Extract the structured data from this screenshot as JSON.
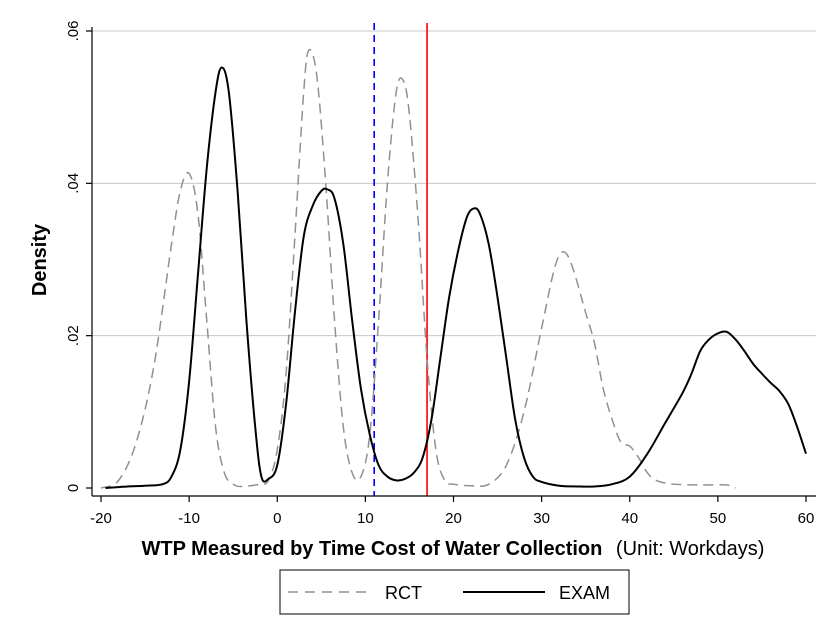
{
  "chart_data": {
    "type": "line",
    "xlabel_bold": "WTP Measured by Time Cost of Water Collection",
    "xlabel_unit": "(Unit: Workdays)",
    "ylabel": "Density",
    "xlim": [
      -20,
      60
    ],
    "ylim": [
      0,
      0.06
    ],
    "xticks": [
      -20,
      -10,
      0,
      10,
      20,
      30,
      40,
      50,
      60
    ],
    "xtick_labels": [
      "-20",
      "-10",
      "0",
      "10",
      "20",
      "30",
      "40",
      "50",
      "60"
    ],
    "yticks": [
      0,
      0.02,
      0.04,
      0.06
    ],
    "ytick_labels": [
      "0",
      ".02",
      ".04",
      ".06"
    ],
    "grid": "horizontal",
    "legend_position": "bottom",
    "series": [
      {
        "name": "RCT",
        "color": "#909090",
        "style": "dashed",
        "points": [
          [
            -20,
            0
          ],
          [
            -18,
            0.001
          ],
          [
            -16,
            0.006
          ],
          [
            -14,
            0.016
          ],
          [
            -12,
            0.032
          ],
          [
            -11,
            0.039
          ],
          [
            -10,
            0.0413
          ],
          [
            -9,
            0.036
          ],
          [
            -8,
            0.022
          ],
          [
            -7,
            0.008
          ],
          [
            -6,
            0.002
          ],
          [
            -5,
            0.0005
          ],
          [
            -4,
            0.0002
          ],
          [
            -2,
            0.0005
          ],
          [
            -1,
            0.001
          ],
          [
            0,
            0.005
          ],
          [
            1,
            0.015
          ],
          [
            2,
            0.033
          ],
          [
            3,
            0.052
          ],
          [
            3.6,
            0.0575
          ],
          [
            4.5,
            0.054
          ],
          [
            5.5,
            0.04
          ],
          [
            6.5,
            0.022
          ],
          [
            7.5,
            0.008
          ],
          [
            8.5,
            0.002
          ],
          [
            9.5,
            0.0015
          ],
          [
            10.5,
            0.007
          ],
          [
            11.5,
            0.022
          ],
          [
            12.5,
            0.04
          ],
          [
            13.5,
            0.052
          ],
          [
            14.3,
            0.0535
          ],
          [
            15,
            0.049
          ],
          [
            16,
            0.035
          ],
          [
            17,
            0.017
          ],
          [
            18,
            0.005
          ],
          [
            19,
            0.001
          ],
          [
            20,
            0.0005
          ],
          [
            22,
            0.0003
          ],
          [
            24,
            0.0005
          ],
          [
            26,
            0.003
          ],
          [
            28,
            0.01
          ],
          [
            30,
            0.021
          ],
          [
            31.5,
            0.029
          ],
          [
            32.5,
            0.031
          ],
          [
            33.5,
            0.029
          ],
          [
            35,
            0.023
          ],
          [
            36,
            0.019
          ],
          [
            37,
            0.013
          ],
          [
            38,
            0.009
          ],
          [
            39,
            0.006
          ],
          [
            40,
            0.0055
          ],
          [
            41,
            0.004
          ],
          [
            42,
            0.002
          ],
          [
            43,
            0.001
          ],
          [
            45,
            0.0005
          ],
          [
            48,
            0.0004
          ],
          [
            51,
            0.0004
          ],
          [
            52,
            0
          ]
        ]
      },
      {
        "name": "EXAM",
        "color": "#000000",
        "style": "solid",
        "points": [
          [
            -19.5,
            0
          ],
          [
            -17,
            0.0002
          ],
          [
            -15,
            0.0003
          ],
          [
            -13,
            0.0005
          ],
          [
            -12,
            0.0015
          ],
          [
            -11,
            0.005
          ],
          [
            -10,
            0.014
          ],
          [
            -9,
            0.028
          ],
          [
            -8,
            0.042
          ],
          [
            -7,
            0.052
          ],
          [
            -6.3,
            0.0552
          ],
          [
            -5.5,
            0.052
          ],
          [
            -4.5,
            0.039
          ],
          [
            -3.5,
            0.022
          ],
          [
            -2.5,
            0.008
          ],
          [
            -1.8,
            0.0015
          ],
          [
            -1,
            0.0012
          ],
          [
            0,
            0.003
          ],
          [
            1,
            0.011
          ],
          [
            2,
            0.023
          ],
          [
            3,
            0.033
          ],
          [
            4,
            0.037
          ],
          [
            5,
            0.039
          ],
          [
            5.7,
            0.0392
          ],
          [
            6.5,
            0.038
          ],
          [
            7.5,
            0.032
          ],
          [
            8.5,
            0.022
          ],
          [
            9.5,
            0.013
          ],
          [
            10.5,
            0.007
          ],
          [
            11.5,
            0.003
          ],
          [
            12.5,
            0.0015
          ],
          [
            13.5,
            0.001
          ],
          [
            14.5,
            0.0012
          ],
          [
            15.5,
            0.002
          ],
          [
            16.5,
            0.004
          ],
          [
            17.5,
            0.009
          ],
          [
            18.5,
            0.017
          ],
          [
            19.5,
            0.025
          ],
          [
            20.5,
            0.031
          ],
          [
            21.5,
            0.0355
          ],
          [
            22.3,
            0.0367
          ],
          [
            23,
            0.036
          ],
          [
            24,
            0.032
          ],
          [
            25,
            0.025
          ],
          [
            26,
            0.017
          ],
          [
            27,
            0.009
          ],
          [
            28,
            0.004
          ],
          [
            29,
            0.0015
          ],
          [
            30,
            0.0008
          ],
          [
            32,
            0.0003
          ],
          [
            34,
            0.0002
          ],
          [
            36,
            0.0002
          ],
          [
            38,
            0.0005
          ],
          [
            40,
            0.0015
          ],
          [
            42,
            0.0045
          ],
          [
            44,
            0.0085
          ],
          [
            46,
            0.0125
          ],
          [
            47,
            0.015
          ],
          [
            48,
            0.018
          ],
          [
            49,
            0.0195
          ],
          [
            50,
            0.0203
          ],
          [
            51,
            0.0205
          ],
          [
            52,
            0.0195
          ],
          [
            53,
            0.018
          ],
          [
            54,
            0.0163
          ],
          [
            55,
            0.015
          ],
          [
            56,
            0.0138
          ],
          [
            57,
            0.0127
          ],
          [
            58,
            0.011
          ],
          [
            59,
            0.008
          ],
          [
            60,
            0.0045
          ]
        ]
      }
    ],
    "reference_lines": [
      {
        "x": 11,
        "color": "#0000ff",
        "style": "dashed"
      },
      {
        "x": 17,
        "color": "#ff0000",
        "style": "solid"
      }
    ],
    "legend": {
      "rct_label": "RCT",
      "exam_label": "EXAM"
    }
  }
}
